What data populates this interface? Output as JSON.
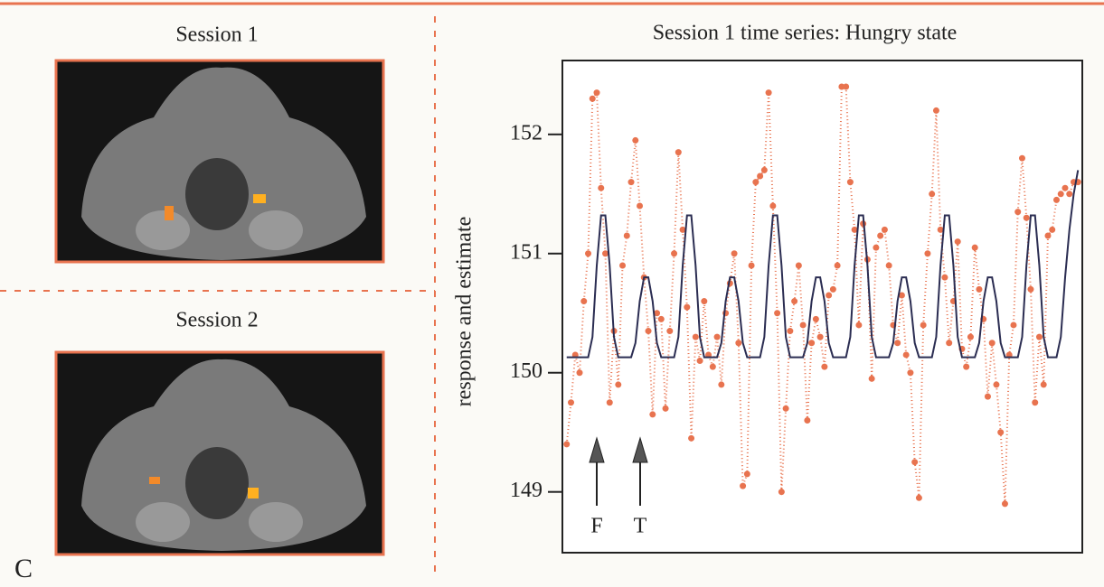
{
  "panel_label": "C",
  "images": [
    {
      "label": "Session 1"
    },
    {
      "label": "Session 2"
    }
  ],
  "chart_data": {
    "type": "line",
    "title": "Session 1 time series:  Hungry state",
    "y_label": "response and estimate",
    "annotations": [
      "F",
      "T"
    ],
    "x": [
      1,
      2,
      3,
      4,
      5,
      6,
      7,
      8,
      9,
      10,
      11,
      12,
      13,
      14,
      15,
      16,
      17,
      18,
      19,
      20,
      21,
      22,
      23,
      24,
      25,
      26,
      27,
      28,
      29,
      30,
      31,
      32,
      33,
      34,
      35,
      36,
      37,
      38,
      39,
      40,
      41,
      42,
      43,
      44,
      45,
      46,
      47,
      48,
      49,
      50,
      51,
      52,
      53,
      54,
      55,
      56,
      57,
      58,
      59,
      60,
      61,
      62,
      63,
      64,
      65,
      66,
      67,
      68,
      69,
      70,
      71,
      72,
      73,
      74,
      75,
      76,
      77,
      78,
      79,
      80,
      81,
      82,
      83,
      84,
      85,
      86,
      87,
      88,
      89,
      90,
      91,
      92,
      93,
      94,
      95,
      96,
      97,
      98,
      99,
      100,
      101,
      102,
      103,
      104,
      105,
      106,
      107,
      108,
      109,
      110,
      111,
      112,
      113,
      114,
      115,
      116,
      117,
      118,
      119,
      120
    ],
    "xlim": [
      0,
      121
    ],
    "ylim": [
      148.49,
      152.62
    ],
    "yticks": [
      149,
      150,
      151,
      152
    ],
    "series": [
      {
        "color": "#e8734f",
        "markers": true,
        "dotted": true,
        "values": [
          149.4,
          149.75,
          150.15,
          150.0,
          150.6,
          151.0,
          152.3,
          152.35,
          151.55,
          151.0,
          149.75,
          150.35,
          149.9,
          150.9,
          151.15,
          151.6,
          151.95,
          151.4,
          150.8,
          150.35,
          149.65,
          150.5,
          150.45,
          149.7,
          150.35,
          151.0,
          151.85,
          151.2,
          150.55,
          149.45,
          150.3,
          150.1,
          150.6,
          150.15,
          150.05,
          150.3,
          149.9,
          150.5,
          150.75,
          151.0,
          150.25,
          149.05,
          149.15,
          150.9,
          151.6,
          151.65,
          151.7,
          152.35,
          151.4,
          150.5,
          149.0,
          149.7,
          150.35,
          150.6,
          150.9,
          150.4,
          149.6,
          150.25,
          150.45,
          150.3,
          150.05,
          150.65,
          150.7,
          150.9,
          152.4,
          152.4,
          151.6,
          151.2,
          150.4,
          151.25,
          150.95,
          149.95,
          151.05,
          151.15,
          151.2,
          150.9,
          150.4,
          150.25,
          150.65,
          150.15,
          150.0,
          149.25,
          148.95,
          150.4,
          151.0,
          151.5,
          152.2,
          151.2,
          150.8,
          150.25,
          150.6,
          151.1,
          150.2,
          150.05,
          150.3,
          151.05,
          150.7,
          150.45,
          149.8,
          150.25,
          149.9,
          149.5,
          148.9,
          150.15,
          150.4,
          151.35,
          151.8,
          151.3,
          150.7,
          149.75,
          150.3,
          149.9,
          151.15,
          151.2,
          151.45,
          151.5,
          151.55,
          151.5,
          151.6,
          151.6
        ]
      },
      {
        "color": "#2b2d52",
        "markers": false,
        "dotted": false,
        "values": [
          150.13,
          150.13,
          150.13,
          150.13,
          150.13,
          150.13,
          150.3,
          150.9,
          151.32,
          151.32,
          150.9,
          150.3,
          150.13,
          150.13,
          150.13,
          150.13,
          150.25,
          150.6,
          150.8,
          150.8,
          150.6,
          150.25,
          150.13,
          150.13,
          150.13,
          150.13,
          150.3,
          150.9,
          151.32,
          151.32,
          150.9,
          150.3,
          150.13,
          150.13,
          150.13,
          150.13,
          150.25,
          150.6,
          150.8,
          150.8,
          150.6,
          150.25,
          150.13,
          150.13,
          150.13,
          150.13,
          150.3,
          150.9,
          151.32,
          151.32,
          150.9,
          150.3,
          150.13,
          150.13,
          150.13,
          150.13,
          150.25,
          150.6,
          150.8,
          150.8,
          150.6,
          150.25,
          150.13,
          150.13,
          150.13,
          150.13,
          150.3,
          150.9,
          151.32,
          151.32,
          150.9,
          150.3,
          150.13,
          150.13,
          150.13,
          150.13,
          150.25,
          150.6,
          150.8,
          150.8,
          150.6,
          150.25,
          150.13,
          150.13,
          150.13,
          150.13,
          150.3,
          150.9,
          151.32,
          151.32,
          150.9,
          150.3,
          150.13,
          150.13,
          150.13,
          150.13,
          150.25,
          150.6,
          150.8,
          150.8,
          150.6,
          150.25,
          150.13,
          150.13,
          150.13,
          150.13,
          150.3,
          150.9,
          151.32,
          151.32,
          150.9,
          150.3,
          150.13,
          150.13,
          150.13,
          150.3,
          150.8,
          151.2,
          151.5,
          151.7
        ]
      }
    ]
  }
}
